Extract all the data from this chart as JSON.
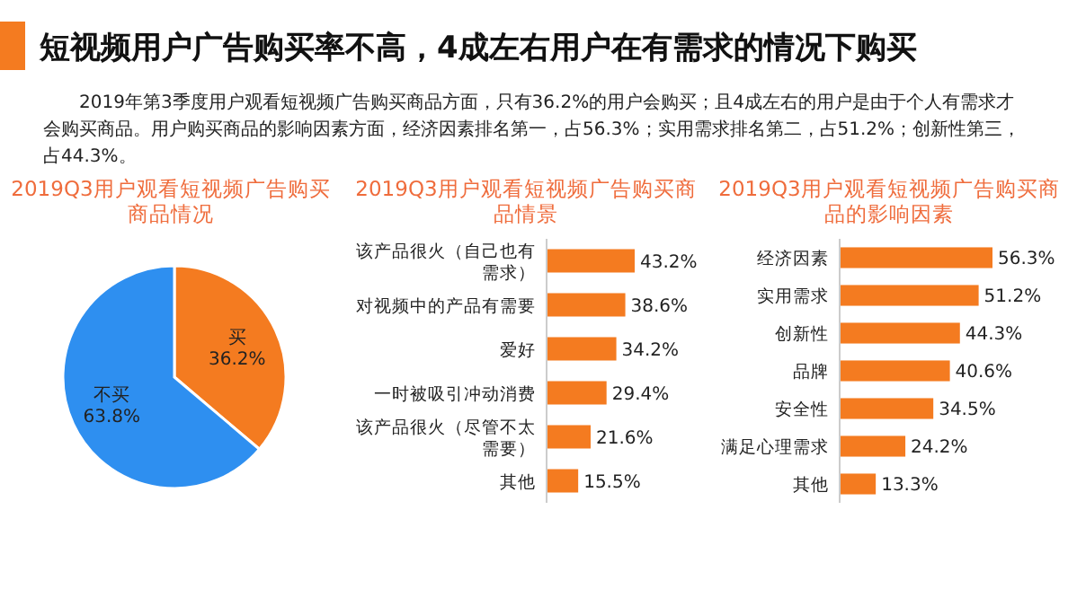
{
  "chart_data": [
    {
      "type": "other",
      "title": "短视频用户广告购买率不高，4成左右用户在有需求的情况下购买",
      "subtitle": "2019年第3季度用户观看短视频广告购买商品方面，只有36.2%的用户会购买；且4成左右的用户是由于个人有需求才会购买商品。用户购买商品的影响因素方面，经济因素排名第一，占56.3%；实用需求排名第二，占51.2%；创新性第三，占44.3%。"
    },
    {
      "type": "pie",
      "title": "2019Q3用户观看短视频广告购买商品情况",
      "categories": [
        "买",
        "不买"
      ],
      "values": [
        36.2,
        63.8
      ],
      "colors": [
        "#f47b20",
        "#2e8ff0"
      ],
      "value_labels": [
        "36.2%",
        "63.8%"
      ]
    },
    {
      "type": "bar",
      "orientation": "horizontal",
      "title": "2019Q3用户观看短视频广告购买商品情景",
      "categories": [
        "该产品很火（自己也有需求）",
        "对视频中的产品有需要",
        "爱好",
        "一时被吸引冲动消费",
        "该产品很火（尽管不太需要）",
        "其他"
      ],
      "values": [
        43.2,
        38.6,
        34.2,
        29.4,
        21.6,
        15.5
      ],
      "color": "#f47b20",
      "value_labels": [
        "43.2%",
        "38.6%",
        "34.2%",
        "29.4%",
        "21.6%",
        "15.5%"
      ]
    },
    {
      "type": "bar",
      "orientation": "horizontal",
      "title": "2019Q3用户观看短视频广告购买商品的影响因素",
      "categories": [
        "经济因素",
        "实用需求",
        "创新性",
        "品牌",
        "安全性",
        "满足心理需求",
        "其他"
      ],
      "values": [
        56.3,
        51.2,
        44.3,
        40.6,
        34.5,
        24.2,
        13.3
      ],
      "color": "#f47b20",
      "value_labels": [
        "56.3%",
        "51.2%",
        "44.3%",
        "40.6%",
        "34.5%",
        "24.2%",
        "13.3%"
      ]
    }
  ]
}
